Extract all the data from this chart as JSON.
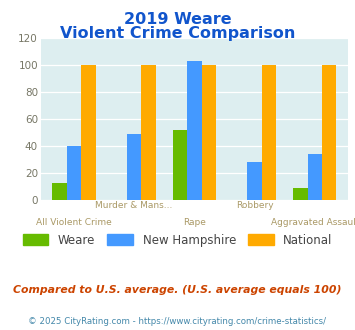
{
  "title_line1": "2019 Weare",
  "title_line2": "Violent Crime Comparison",
  "categories": [
    "All Violent Crime",
    "Murder & Mans...",
    "Rape",
    "Robbery",
    "Aggravated Assault"
  ],
  "weare": [
    12,
    0,
    52,
    0,
    9
  ],
  "new_hampshire": [
    40,
    49,
    103,
    28,
    34
  ],
  "national": [
    100,
    100,
    100,
    100,
    100
  ],
  "weare_color": "#66bb00",
  "nh_color": "#4499ff",
  "national_color": "#ffaa00",
  "bg_color": "#ddeef0",
  "ylim": [
    0,
    120
  ],
  "yticks": [
    0,
    20,
    40,
    60,
    80,
    100,
    120
  ],
  "footer_note": "Compared to U.S. average. (U.S. average equals 100)",
  "footer_copy": "© 2025 CityRating.com - https://www.cityrating.com/crime-statistics/",
  "legend_labels": [
    "Weare",
    "New Hampshire",
    "National"
  ],
  "title_color": "#1155cc",
  "label_color": "#aa9966",
  "footer_note_color": "#cc4400",
  "footer_copy_color": "#4488aa"
}
